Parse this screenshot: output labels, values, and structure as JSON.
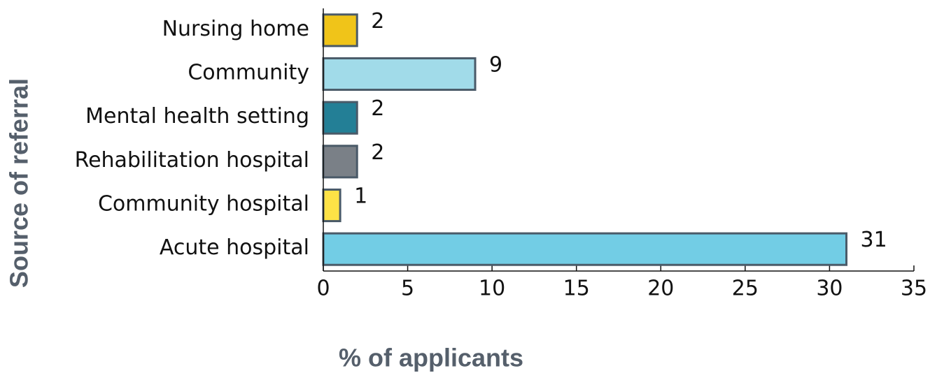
{
  "chart_data": {
    "type": "hbar",
    "x_label": "% of applicants",
    "y_label": "Source of referral",
    "categories": [
      "Nursing home",
      "Community",
      "Mental health setting",
      "Rehabilitation hospital",
      "Community hospital",
      "Acute hospital"
    ],
    "values": [
      2,
      9,
      2,
      2,
      1,
      31
    ],
    "colors": [
      "#f0c419",
      "#a1dbe9",
      "#237f96",
      "#7a8087",
      "#fde246",
      "#72cde5"
    ],
    "xlim": [
      0,
      35
    ],
    "xticks": [
      0,
      5,
      10,
      15,
      20,
      25,
      30,
      35
    ],
    "grid": false
  }
}
